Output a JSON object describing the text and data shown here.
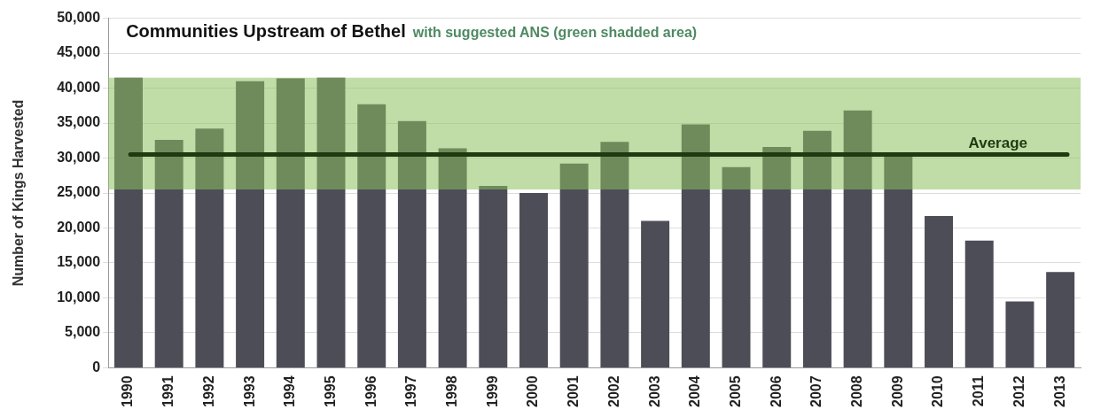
{
  "chart_data": {
    "type": "bar",
    "title": "Communities Upstream of Bethel",
    "subtitle": "with suggested ANS (green shadded area)",
    "ylabel": "Number of Kings Harvested",
    "categories": [
      "1990",
      "1991",
      "1992",
      "1993",
      "1994",
      "1995",
      "1996",
      "1997",
      "1998",
      "1999",
      "2000",
      "2001",
      "2002",
      "2003",
      "2004",
      "2005",
      "2006",
      "2007",
      "2008",
      "2009",
      "2010",
      "2011",
      "2012",
      "2013"
    ],
    "values": [
      41500,
      32600,
      34200,
      41000,
      41400,
      41500,
      37700,
      35300,
      31400,
      26000,
      25000,
      29200,
      32300,
      21000,
      34800,
      28700,
      31600,
      33900,
      36800,
      30500,
      21700,
      18200,
      9500,
      13700
    ],
    "color": "#4d4d57",
    "ylim": [
      0,
      50000
    ],
    "yticks": [
      0,
      {
        "value": 5000,
        "label": "5,000"
      },
      {
        "value": 10000,
        "label": "10,000"
      },
      {
        "value": 15000,
        "label": "15,000"
      },
      {
        "value": 20000,
        "label": "20,000"
      },
      {
        "value": 25000,
        "label": "25,000"
      },
      {
        "value": 30000,
        "label": "30,000"
      },
      {
        "value": 35000,
        "label": "35,000"
      },
      {
        "value": 40000,
        "label": "40,000"
      },
      {
        "value": 45000,
        "label": "45,000"
      },
      {
        "value": 50000,
        "label": "50,000"
      }
    ],
    "grid": "y",
    "ref_lines": [
      {
        "axis": "y",
        "value": 30500,
        "label": "Average",
        "color": "#1e3a10"
      }
    ],
    "bands": [
      {
        "axis": "y",
        "from": 25500,
        "to": 41500,
        "color": "#8dbf5f"
      }
    ]
  }
}
